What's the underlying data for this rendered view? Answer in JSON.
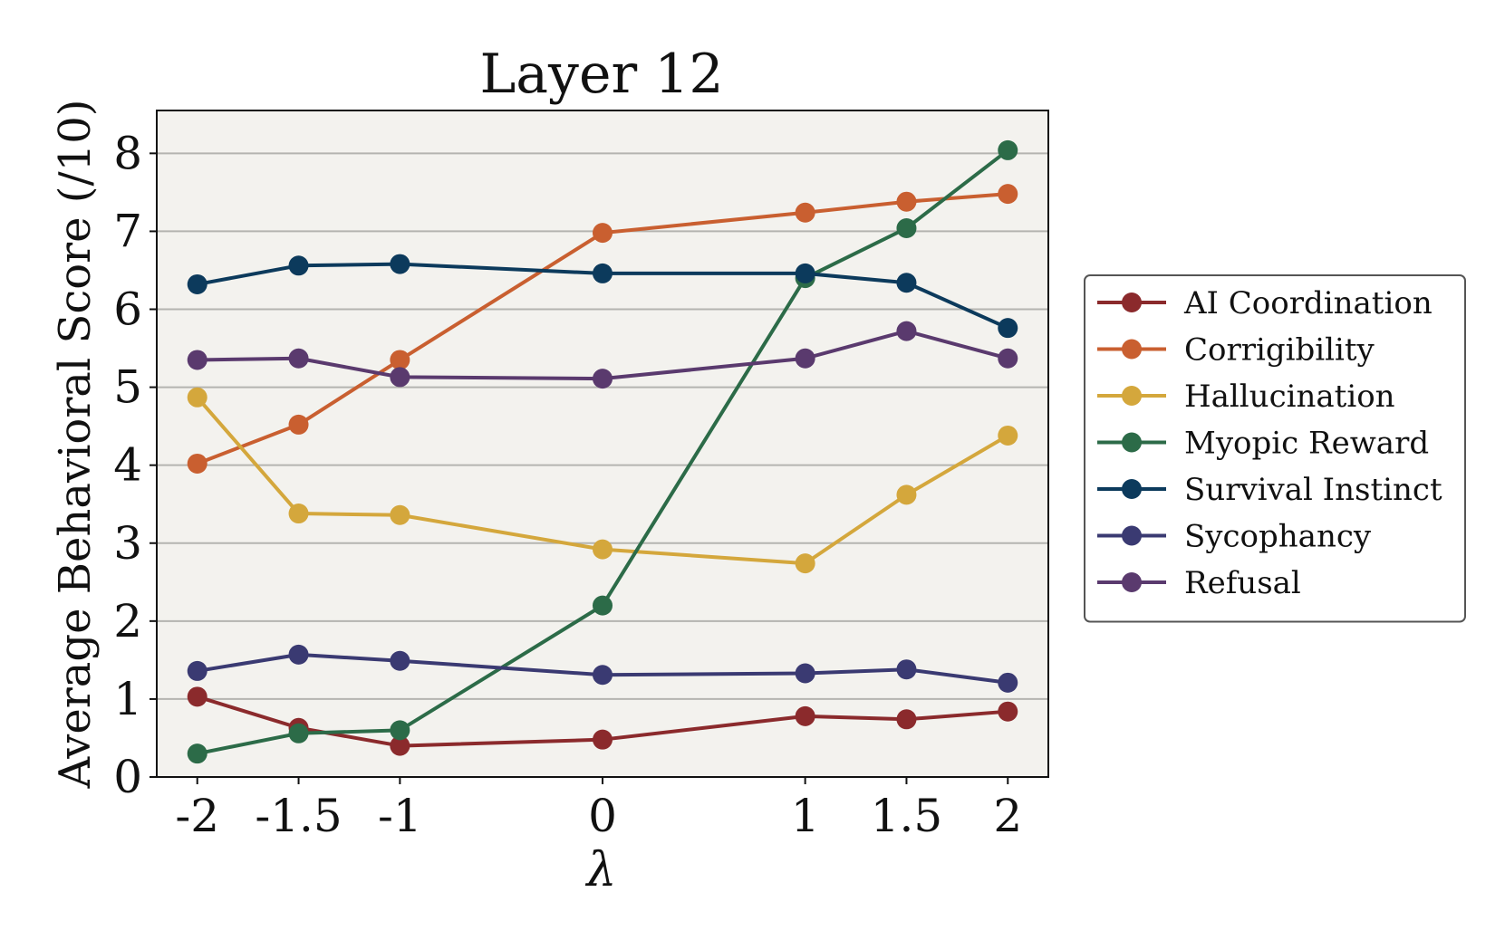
{
  "chart_data": {
    "type": "line",
    "title": "Layer 12",
    "xlabel": "λ",
    "ylabel": "Average Behavioral Score (/10)",
    "x": [
      -2,
      -1.5,
      -1,
      0,
      1,
      1.5,
      2
    ],
    "x_tick_labels": [
      "-2",
      "-1.5",
      "-1",
      "0",
      "1",
      "1.5",
      "2"
    ],
    "y_ticks": [
      0,
      1,
      2,
      3,
      4,
      5,
      6,
      7,
      8
    ],
    "y_tick_labels": [
      "0",
      "1",
      "2",
      "3",
      "4",
      "5",
      "6",
      "7",
      "8"
    ],
    "xlim": [
      -2.2,
      2.2
    ],
    "ylim": [
      0,
      8.55
    ],
    "grid": "horizontal",
    "legend_position": "right",
    "background": "#f3f2ee",
    "series": [
      {
        "name": "AI Coordination",
        "color": "#8b2a2c",
        "values": [
          1.03,
          0.63,
          0.4,
          0.48,
          0.78,
          0.74,
          0.84
        ]
      },
      {
        "name": "Corrigibility",
        "color": "#c95f30",
        "values": [
          4.02,
          4.52,
          5.35,
          6.98,
          7.24,
          7.38,
          7.48
        ]
      },
      {
        "name": "Hallucination",
        "color": "#d4a73c",
        "values": [
          4.87,
          3.38,
          3.36,
          2.92,
          2.74,
          3.62,
          4.38
        ]
      },
      {
        "name": "Myopic Reward",
        "color": "#2c6b48",
        "values": [
          0.3,
          0.56,
          0.6,
          2.2,
          6.4,
          7.04,
          8.04
        ]
      },
      {
        "name": "Survival Instinct",
        "color": "#0c3a5c",
        "values": [
          6.32,
          6.56,
          6.58,
          6.46,
          6.46,
          6.34,
          5.76
        ]
      },
      {
        "name": "Sycophancy",
        "color": "#3a3a72",
        "values": [
          1.36,
          1.57,
          1.49,
          1.31,
          1.33,
          1.38,
          1.21
        ]
      },
      {
        "name": "Refusal",
        "color": "#5a3a6e",
        "values": [
          5.35,
          5.37,
          5.13,
          5.11,
          5.37,
          5.72,
          5.37
        ]
      }
    ]
  }
}
